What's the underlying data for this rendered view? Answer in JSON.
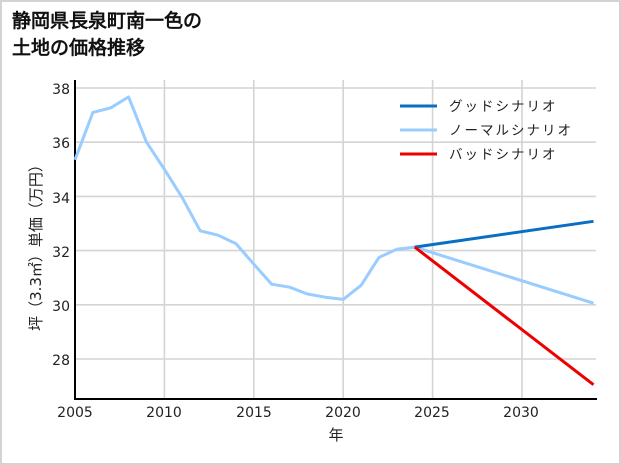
{
  "title": {
    "line1": "静岡県長泉町南一色の",
    "line2": "土地の価格推移"
  },
  "axes": {
    "xlabel": "年",
    "ylabel": "坪（3.3㎡）単価（万円）",
    "xticks": [
      "2005",
      "2010",
      "2015",
      "2020",
      "2025",
      "2030"
    ],
    "yticks": [
      "38",
      "36",
      "34",
      "32",
      "30",
      "28"
    ]
  },
  "legend": {
    "items": [
      {
        "label": "グッドシナリオ",
        "color": "#0a6fc2"
      },
      {
        "label": "ノーマルシナリオ",
        "color": "#99ccff"
      },
      {
        "label": "バッドシナリオ",
        "color": "#ee0000"
      }
    ]
  },
  "chart_data": {
    "type": "line",
    "title": "静岡県長泉町南一色の土地の価格推移",
    "xlabel": "年",
    "ylabel": "坪（3.3㎡）単価（万円）",
    "xlim": [
      2005,
      2034
    ],
    "ylim": [
      26.7,
      38.3
    ],
    "grid": true,
    "legend_position": "upper right",
    "x_ticks": [
      2005,
      2010,
      2015,
      2020,
      2025,
      2030
    ],
    "y_ticks": [
      28,
      30,
      32,
      34,
      36,
      38
    ],
    "series": [
      {
        "name": "ノーマルシナリオ",
        "color": "#99ccff",
        "x": [
          2005,
          2006,
          2007,
          2008,
          2009,
          2010,
          2011,
          2012,
          2013,
          2014,
          2015,
          2016,
          2017,
          2018,
          2019,
          2020,
          2021,
          2022,
          2023,
          2024,
          2034
        ],
        "values": [
          35.35,
          37.1,
          37.27,
          37.67,
          36.0,
          35.0,
          33.95,
          32.73,
          32.57,
          32.26,
          31.5,
          30.76,
          30.65,
          30.4,
          30.28,
          30.2,
          30.72,
          31.75,
          32.05,
          32.13,
          30.06
        ]
      },
      {
        "name": "グッドシナリオ",
        "color": "#0a6fc2",
        "x": [
          2024,
          2034
        ],
        "values": [
          32.13,
          33.08
        ]
      },
      {
        "name": "バッドシナリオ",
        "color": "#ee0000",
        "x": [
          2024,
          2034
        ],
        "values": [
          32.13,
          27.05
        ]
      }
    ]
  }
}
